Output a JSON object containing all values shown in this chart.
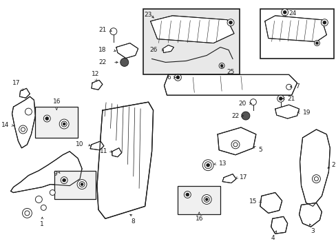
{
  "bg_color": "#ffffff",
  "line_color": "#1a1a1a",
  "fig_width": 4.89,
  "fig_height": 3.6,
  "dpi": 100,
  "font_size": 6.5,
  "lw": 0.65
}
